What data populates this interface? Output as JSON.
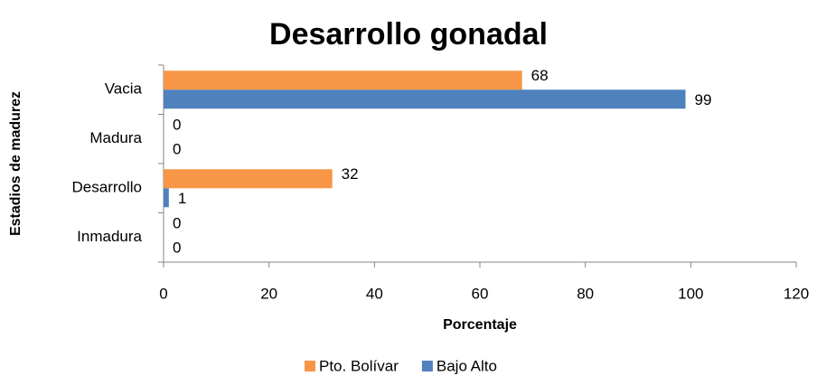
{
  "chart_data": {
    "type": "hbar",
    "title": "Desarrollo gonadal",
    "x_label": "Porcentaje",
    "y_label": "Estadios de madurez",
    "categories": [
      "Vacia",
      "Madura",
      "Desarrollo",
      "Inmadura"
    ],
    "series": [
      {
        "name": "Pto. Bolívar",
        "color": "#f79646",
        "values": [
          68,
          0,
          32,
          0
        ]
      },
      {
        "name": "Bajo Alto",
        "color": "#4f81bd",
        "values": [
          99,
          0,
          1,
          0
        ]
      }
    ],
    "xlim": [
      0,
      120
    ],
    "xticks": [
      0,
      20,
      40,
      60,
      80,
      100,
      120
    ],
    "grid": false,
    "legend": "bottom"
  }
}
